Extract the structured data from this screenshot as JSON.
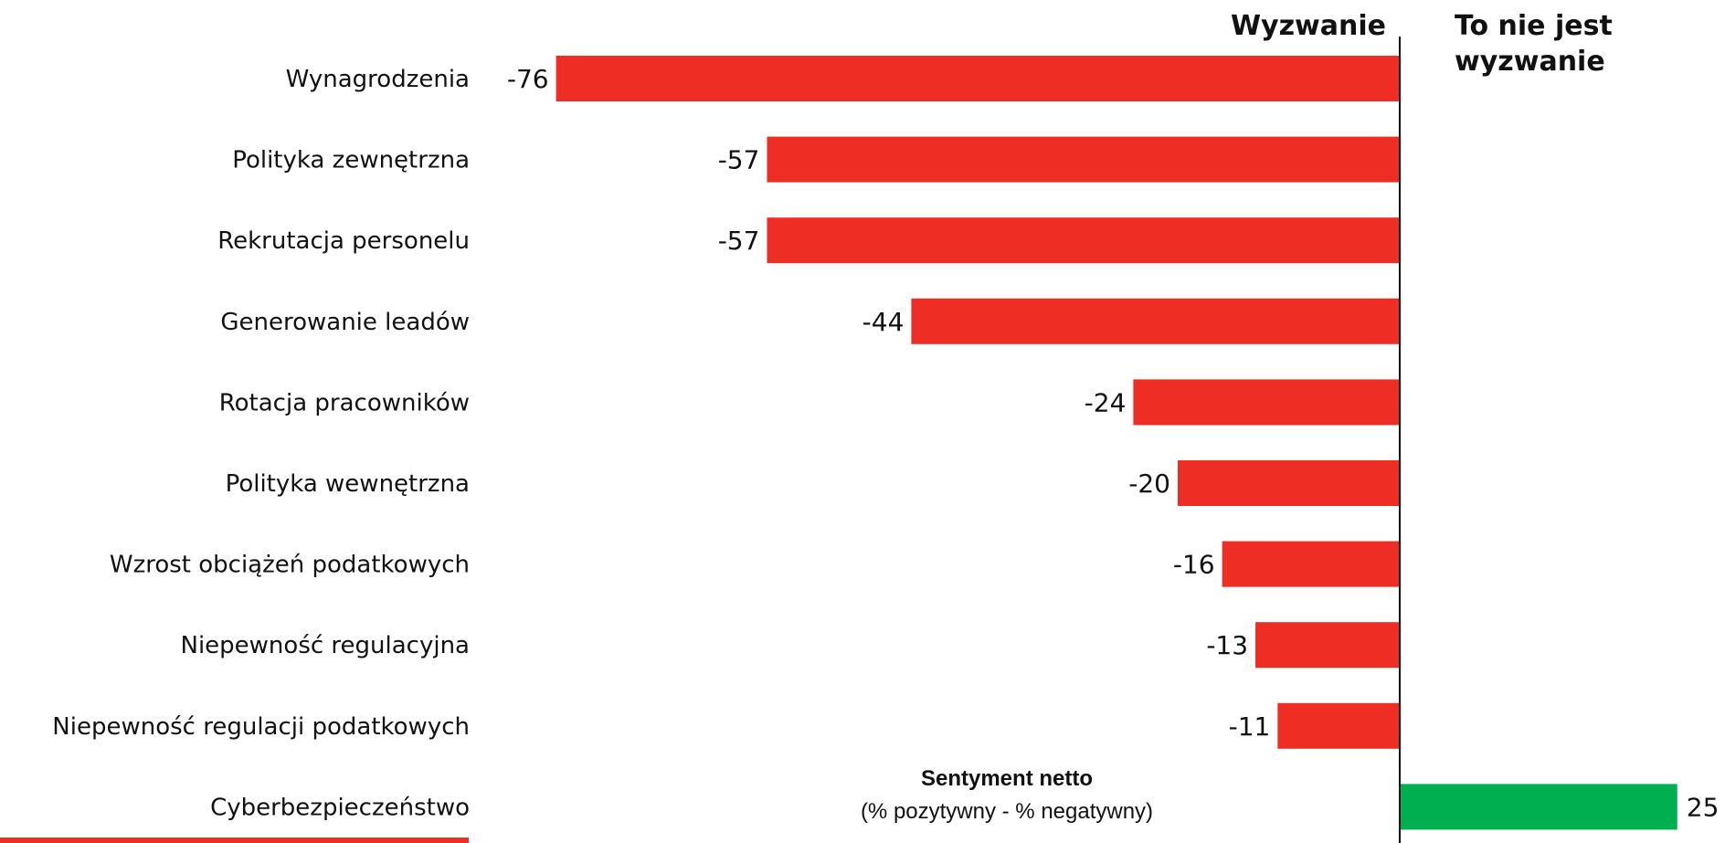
{
  "chart_data": {
    "type": "bar",
    "orientation": "horizontal",
    "categories": [
      "Wynagrodzenia",
      "Polityka zewnętrzna",
      "Rekrutacja personelu",
      "Generowanie leadów",
      "Rotacja pracowników",
      "Polityka wewnętrzna",
      "Wzrost obciążeń podatkowych",
      "Niepewność regulacyjna",
      "Niepewność regulacji podatkowych",
      "Cyberbezpieczeństwo"
    ],
    "values": [
      -76,
      -57,
      -57,
      -44,
      -24,
      -20,
      -16,
      -13,
      -11,
      25
    ],
    "value_labels": [
      "-76",
      "-57",
      "-57",
      "-44",
      "-24",
      "-20",
      "-16",
      "-13",
      "-11",
      "25"
    ],
    "headers": {
      "negative_side": "Wyzwanie",
      "positive_side_line1": "To nie jest",
      "positive_side_line2": "wyzwanie"
    },
    "annotation": {
      "title": "Sentyment netto",
      "subtitle": "(% pozytywny - % negatywny)"
    },
    "colors": {
      "negative": "#EE2E24",
      "positive": "#00B050",
      "axis": "#111111",
      "underline": "#EE2E24"
    },
    "xlim": [
      -76,
      25
    ],
    "grid": false,
    "legend": "none"
  }
}
